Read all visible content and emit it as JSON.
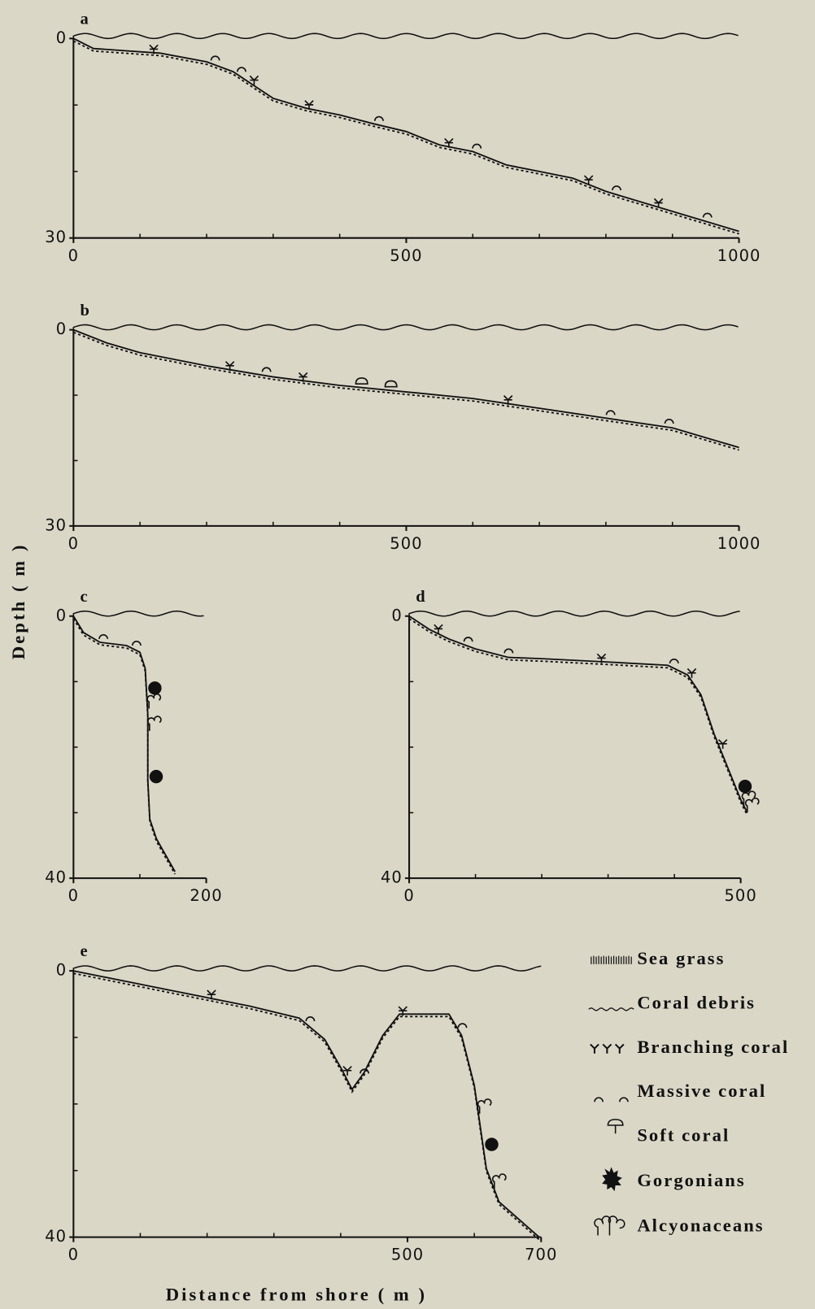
{
  "chart_data": [
    {
      "type": "line",
      "label": "a",
      "x": [
        0,
        30,
        100,
        130,
        200,
        240,
        270,
        300,
        350,
        400,
        450,
        500,
        550,
        600,
        650,
        700,
        750,
        800,
        850,
        900,
        950,
        1000
      ],
      "values": [
        0,
        1.5,
        2,
        2.2,
        3.5,
        5,
        7,
        9,
        10.5,
        11.5,
        12.8,
        14,
        16,
        17,
        19,
        20,
        21,
        23,
        24.5,
        26,
        27.5,
        29
      ],
      "xlim": [
        0,
        1000
      ],
      "ylim": [
        0,
        30
      ],
      "xticks": [
        0,
        500,
        1000
      ],
      "yticks": [
        0,
        30
      ],
      "minor_xticks": [
        100,
        200,
        300,
        400,
        600,
        700,
        800,
        900
      ],
      "minor_yticks": [
        10,
        20
      ]
    },
    {
      "type": "line",
      "label": "b",
      "x": [
        0,
        50,
        100,
        200,
        300,
        400,
        500,
        600,
        700,
        800,
        900,
        1000
      ],
      "values": [
        0,
        2,
        3.5,
        5.5,
        7.2,
        8.5,
        9.5,
        10.5,
        12,
        13.5,
        15,
        18
      ],
      "xlim": [
        0,
        1000
      ],
      "ylim": [
        0,
        30
      ],
      "xticks": [
        0,
        500,
        1000
      ],
      "yticks": [
        0,
        30
      ],
      "minor_xticks": [
        100,
        200,
        300,
        400,
        600,
        700,
        800,
        900
      ],
      "minor_yticks": [
        10,
        20
      ]
    },
    {
      "type": "line",
      "label": "c",
      "x": [
        0,
        15,
        40,
        80,
        100,
        108,
        112,
        112,
        115,
        125,
        153
      ],
      "values": [
        0,
        2.5,
        4,
        4.5,
        5.5,
        8,
        15,
        25,
        31,
        34,
        39
      ],
      "xlim": [
        0,
        200
      ],
      "ylim": [
        0,
        40
      ],
      "xticks": [
        0,
        200
      ],
      "yticks": [
        0,
        40
      ],
      "minor_xticks": [
        100
      ],
      "minor_yticks": [
        10,
        20,
        30
      ]
    },
    {
      "type": "line",
      "label": "d",
      "x": [
        0,
        30,
        60,
        100,
        150,
        200,
        300,
        390,
        420,
        440,
        460,
        480,
        500,
        510
      ],
      "values": [
        0,
        2,
        3.5,
        5,
        6.3,
        6.5,
        7,
        7.5,
        9,
        12,
        18,
        23,
        28,
        30
      ],
      "xlim": [
        0,
        500
      ],
      "ylim": [
        0,
        40
      ],
      "xticks": [
        0,
        500
      ],
      "yticks": [
        0,
        40
      ],
      "minor_xticks": [
        100,
        200,
        300,
        400
      ],
      "minor_yticks": [
        10,
        20,
        30
      ]
    },
    {
      "type": "line",
      "label": "e",
      "x": [
        0,
        139,
        264,
        338,
        376,
        401,
        417,
        435,
        463,
        488,
        562,
        581,
        600,
        618,
        637,
        697
      ],
      "values": [
        0,
        2.8,
        5.3,
        7.1,
        10.3,
        14.7,
        17.8,
        15.3,
        9.7,
        6.5,
        6.5,
        9.7,
        17.2,
        29.7,
        34.7,
        40
      ],
      "xlim": [
        0,
        700
      ],
      "ylim": [
        0,
        40
      ],
      "xticks": [
        0,
        500,
        700
      ],
      "yticks": [
        0,
        40
      ],
      "minor_xticks": [
        100,
        200,
        300,
        400,
        600
      ],
      "minor_yticks": [
        10,
        20,
        30
      ]
    }
  ],
  "y_label": "Depth ( m )",
  "x_label": "Distance from shore ( m )",
  "legend": [
    "Sea grass",
    "Coral debris",
    "Branching coral",
    "Massive coral",
    "Soft coral",
    "Gorgonians",
    "Alcyonaceans"
  ]
}
